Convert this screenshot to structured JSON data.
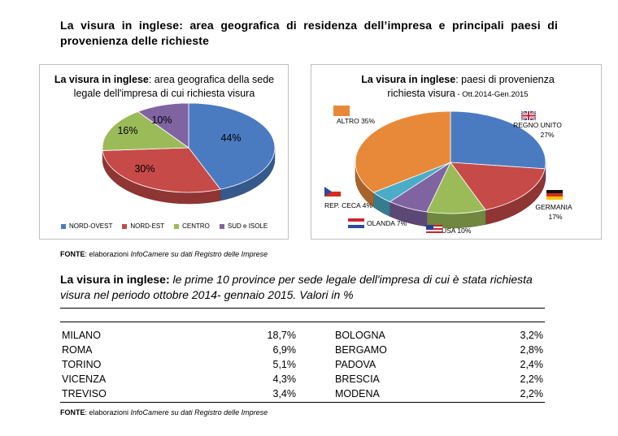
{
  "doc_title": "La visura in inglese: area geografica di residenza dell’impresa e principali paesi di provenienza delle richieste",
  "chart_data": [
    {
      "type": "pie",
      "title_bold": "La visura in inglese",
      "title_rest": ": area geografica della sede legale dell'impresa di cui richiesta visura",
      "categories": [
        "NORD-OVEST",
        "NORD-EST",
        "CENTRO",
        "SUD e ISOLE"
      ],
      "values": [
        44,
        30,
        16,
        10
      ],
      "labels": [
        "44%",
        "30%",
        "16%",
        "10%"
      ],
      "colors": [
        "#4a7bc1",
        "#c64a48",
        "#9bbb59",
        "#8064a2"
      ],
      "legend_position": "bottom"
    },
    {
      "type": "pie",
      "title_bold": "La visura in inglese",
      "title_rest": ": paesi di provenienza",
      "title_line2": "richiesta visura",
      "title_line2_small": " - Ott.2014-Gen.2015",
      "categories": [
        "REGNO UNITO",
        "GERMANIA",
        "USA",
        "OLANDA",
        "REP. CECA",
        "ALTRO"
      ],
      "values": [
        27,
        17,
        10,
        7,
        4,
        35
      ],
      "labels": [
        "27%",
        "17%",
        "10%",
        "7%",
        "4%",
        "35%"
      ],
      "colors": [
        "#4a7bc1",
        "#c64a48",
        "#9bbb59",
        "#8064a2",
        "#4bacc6",
        "#e8893a"
      ],
      "flag_icons": [
        "uk-flag-icon",
        "germany-flag-icon",
        "usa-flag-icon",
        "netherlands-flag-icon",
        "czech-flag-icon",
        "orange-square-icon"
      ]
    },
    {
      "type": "table",
      "title_bold": "La visura in inglese:",
      "title_italic": " le prime 10 province per sede legale dell'impresa di cui è stata richiesta visura nel periodo ottobre 2014- gennaio 2015. Valori in %",
      "left_rows": [
        {
          "province": "MILANO",
          "value": "18,7%"
        },
        {
          "province": "ROMA",
          "value": "6,9%"
        },
        {
          "province": "TORINO",
          "value": "5,1%"
        },
        {
          "province": "VICENZA",
          "value": "4,3%"
        },
        {
          "province": "TREVISO",
          "value": "3,4%"
        }
      ],
      "right_rows": [
        {
          "province": "BOLOGNA",
          "value": "3,2%"
        },
        {
          "province": "BERGAMO",
          "value": "2,8%"
        },
        {
          "province": "PADOVA",
          "value": "2,4%"
        },
        {
          "province": "BRESCIA",
          "value": "2,2%"
        },
        {
          "province": "MODENA",
          "value": "2,2%"
        }
      ]
    }
  ],
  "fonte": {
    "label": "FONTE",
    "colon": ": elaborazioni ",
    "italic": "InfoCamere su dati Registro delle Imprese"
  }
}
